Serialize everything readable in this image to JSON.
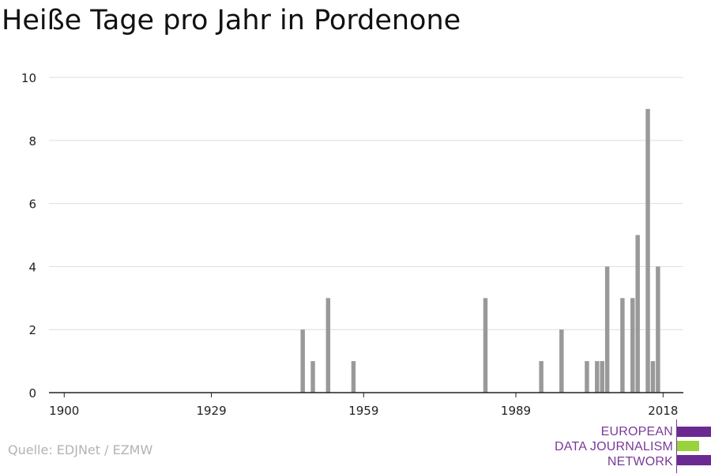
{
  "title": "Heiße Tage pro Jahr in Pordenone",
  "source": "Quelle: EDJNet / EZMW",
  "logo": {
    "lines": [
      "EUROPEAN",
      "DATA JOURNALISM",
      "NETWORK"
    ],
    "colors": [
      "#6a2a91",
      "#9ad23c",
      "#6a2a91"
    ]
  },
  "colors": {
    "bar": "#999999",
    "grid": "#dddddd",
    "axis": "#222222",
    "text": "#222222"
  },
  "chart_data": {
    "type": "bar",
    "title": "Heiße Tage pro Jahr in Pordenone",
    "xlabel": "",
    "ylabel": "",
    "xlim": [
      1897,
      2022
    ],
    "ylim": [
      0,
      10
    ],
    "xticks": [
      1900,
      1929,
      1959,
      1989,
      2018
    ],
    "yticks": [
      0,
      2,
      4,
      6,
      8,
      10
    ],
    "grid": true,
    "series": [
      {
        "values": [
          {
            "x": 1947,
            "y": 2
          },
          {
            "x": 1949,
            "y": 1
          },
          {
            "x": 1952,
            "y": 3
          },
          {
            "x": 1957,
            "y": 1
          },
          {
            "x": 1983,
            "y": 3
          },
          {
            "x": 1994,
            "y": 1
          },
          {
            "x": 1998,
            "y": 2
          },
          {
            "x": 2003,
            "y": 1
          },
          {
            "x": 2005,
            "y": 1
          },
          {
            "x": 2006,
            "y": 1
          },
          {
            "x": 2007,
            "y": 4
          },
          {
            "x": 2010,
            "y": 3
          },
          {
            "x": 2012,
            "y": 3
          },
          {
            "x": 2013,
            "y": 5
          },
          {
            "x": 2015,
            "y": 9
          },
          {
            "x": 2016,
            "y": 1
          },
          {
            "x": 2017,
            "y": 4
          }
        ]
      }
    ]
  }
}
